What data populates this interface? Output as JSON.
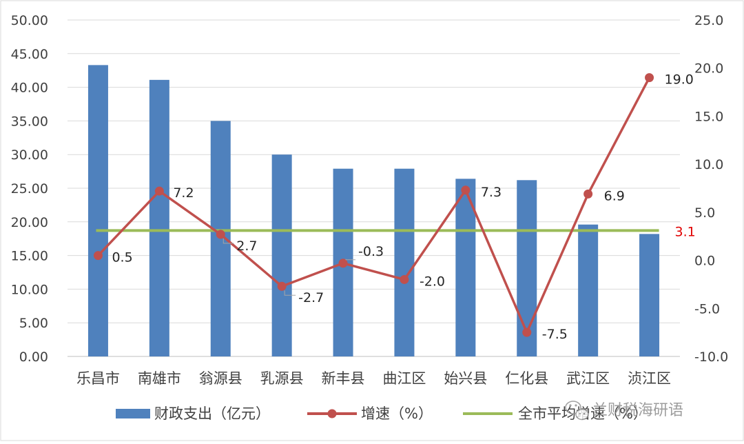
{
  "chart_data": {
    "type": "bar",
    "categories": [
      "乐昌市",
      "南雄市",
      "翁源县",
      "乳源县",
      "新丰县",
      "曲江区",
      "始兴县",
      "仁化县",
      "武江区",
      "浈江区"
    ],
    "series": [
      {
        "name": "财政支出（亿元）",
        "type": "bar",
        "axis": "left",
        "color": "#4f81bd",
        "values": [
          43.3,
          41.1,
          35.0,
          30.0,
          27.9,
          27.9,
          26.4,
          26.2,
          19.6,
          18.2
        ]
      },
      {
        "name": "增速（%）",
        "type": "line",
        "axis": "right",
        "color": "#c0504d",
        "values": [
          0.5,
          7.2,
          2.7,
          -2.7,
          -0.3,
          -2.0,
          7.3,
          -7.5,
          6.9,
          19.0
        ],
        "labels": [
          "0.5",
          "7.2",
          "2.7",
          "-2.7",
          "-0.3",
          "-2.0",
          "7.3",
          "-7.5",
          "6.9",
          "19.0"
        ]
      },
      {
        "name": "全市平均增速（%）",
        "type": "line",
        "axis": "right",
        "color": "#9bbb59",
        "value": 3.1,
        "label": "3.1",
        "label_color": "#e00000"
      }
    ],
    "y_left": {
      "range": [
        0,
        50
      ],
      "ticks": [
        "0.00",
        "5.00",
        "10.00",
        "15.00",
        "20.00",
        "25.00",
        "30.00",
        "35.00",
        "40.00",
        "45.00",
        "50.00"
      ]
    },
    "y_right": {
      "range": [
        -10,
        25
      ],
      "ticks": [
        "-10.0",
        "-5.0",
        "0.0",
        "5.0",
        "10.0",
        "15.0",
        "20.0",
        "25.0"
      ]
    },
    "grid": true,
    "legend_position": "bottom"
  },
  "watermark": {
    "text": "兰财税海研语",
    "icon": "wechat-icon"
  }
}
